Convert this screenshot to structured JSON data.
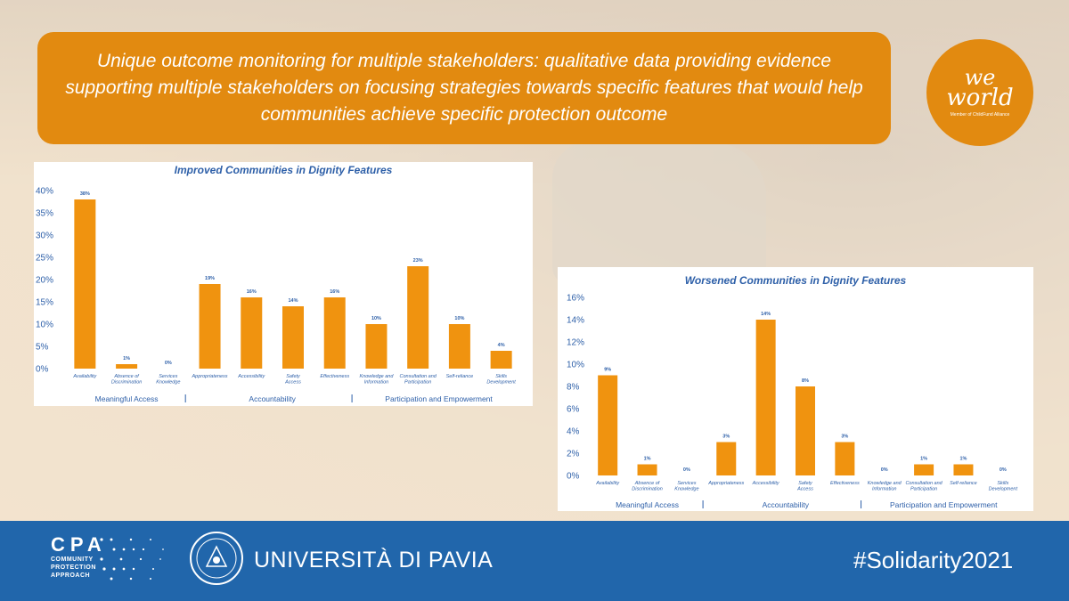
{
  "banner": {
    "text": "Unique outcome monitoring for multiple stakeholders: qualitative data providing evidence supporting multiple stakeholders on focusing strategies towards specific features that would help communities achieve specific protection outcome"
  },
  "logo": {
    "line1": "we",
    "line2": "world",
    "tagline": "Member of ChildFund Alliance"
  },
  "footer": {
    "cpa_big": "CPA",
    "cpa_lines": [
      "COMMUNITY",
      "PROTECTION",
      "APPROACH"
    ],
    "university": "UNIVERSITÀ DI PAVIA",
    "hashtag": "#Solidarity2021"
  },
  "colors": {
    "accent": "#e28a10",
    "bar": "#f0930f",
    "footer": "#2166ab",
    "chart_title": "#2d5fa8"
  },
  "chart_data": [
    {
      "type": "bar",
      "title": "Improved Communities in Dignity Features",
      "categories": [
        "Availability",
        "Absence of Discrimination",
        "Services Knowledge",
        "Appropriateness",
        "Accessibility",
        "Safety Access",
        "Effectiveness",
        "Knowledge and Information",
        "Consultation and Participation",
        "Self-reliance",
        "Skills Development"
      ],
      "values": [
        38,
        1,
        0,
        19,
        16,
        14,
        16,
        10,
        23,
        10,
        4
      ],
      "data_labels": [
        "38%",
        "1%",
        "0%",
        "19%",
        "16%",
        "14%",
        "16%",
        "10%",
        "23%",
        "10%",
        "4%"
      ],
      "yticks": [
        "0%",
        "5%",
        "10%",
        "15%",
        "20%",
        "25%",
        "30%",
        "35%",
        "40%"
      ],
      "ylim": [
        0,
        40
      ],
      "groups": [
        "Meaningful Access",
        "Accountability",
        "Participation and Empowerment"
      ],
      "group_ranges": [
        [
          0,
          2
        ],
        [
          3,
          6
        ],
        [
          7,
          10
        ]
      ],
      "grid": false
    },
    {
      "type": "bar",
      "title": "Worsened Communities in Dignity Features",
      "categories": [
        "Availability",
        "Absence of Discrimination",
        "Services Knowledge",
        "Appropriateness",
        "Accessibility",
        "Safety Access",
        "Effectiveness",
        "Knowledge and Information",
        "Consultation and Participation",
        "Self-reliance",
        "Skills Development"
      ],
      "values": [
        9,
        1,
        0,
        3,
        14,
        8,
        3,
        0,
        1,
        1,
        0
      ],
      "data_labels": [
        "9%",
        "1%",
        "0%",
        "3%",
        "14%",
        "8%",
        "3%",
        "0%",
        "1%",
        "1%",
        "0%"
      ],
      "yticks": [
        "0%",
        "2%",
        "4%",
        "6%",
        "8%",
        "10%",
        "12%",
        "14%",
        "16%"
      ],
      "ylim": [
        0,
        16
      ],
      "groups": [
        "Meaningful Access",
        "Accountability",
        "Participation and Empowerment"
      ],
      "group_ranges": [
        [
          0,
          2
        ],
        [
          3,
          6
        ],
        [
          7,
          10
        ]
      ],
      "grid": false
    }
  ]
}
